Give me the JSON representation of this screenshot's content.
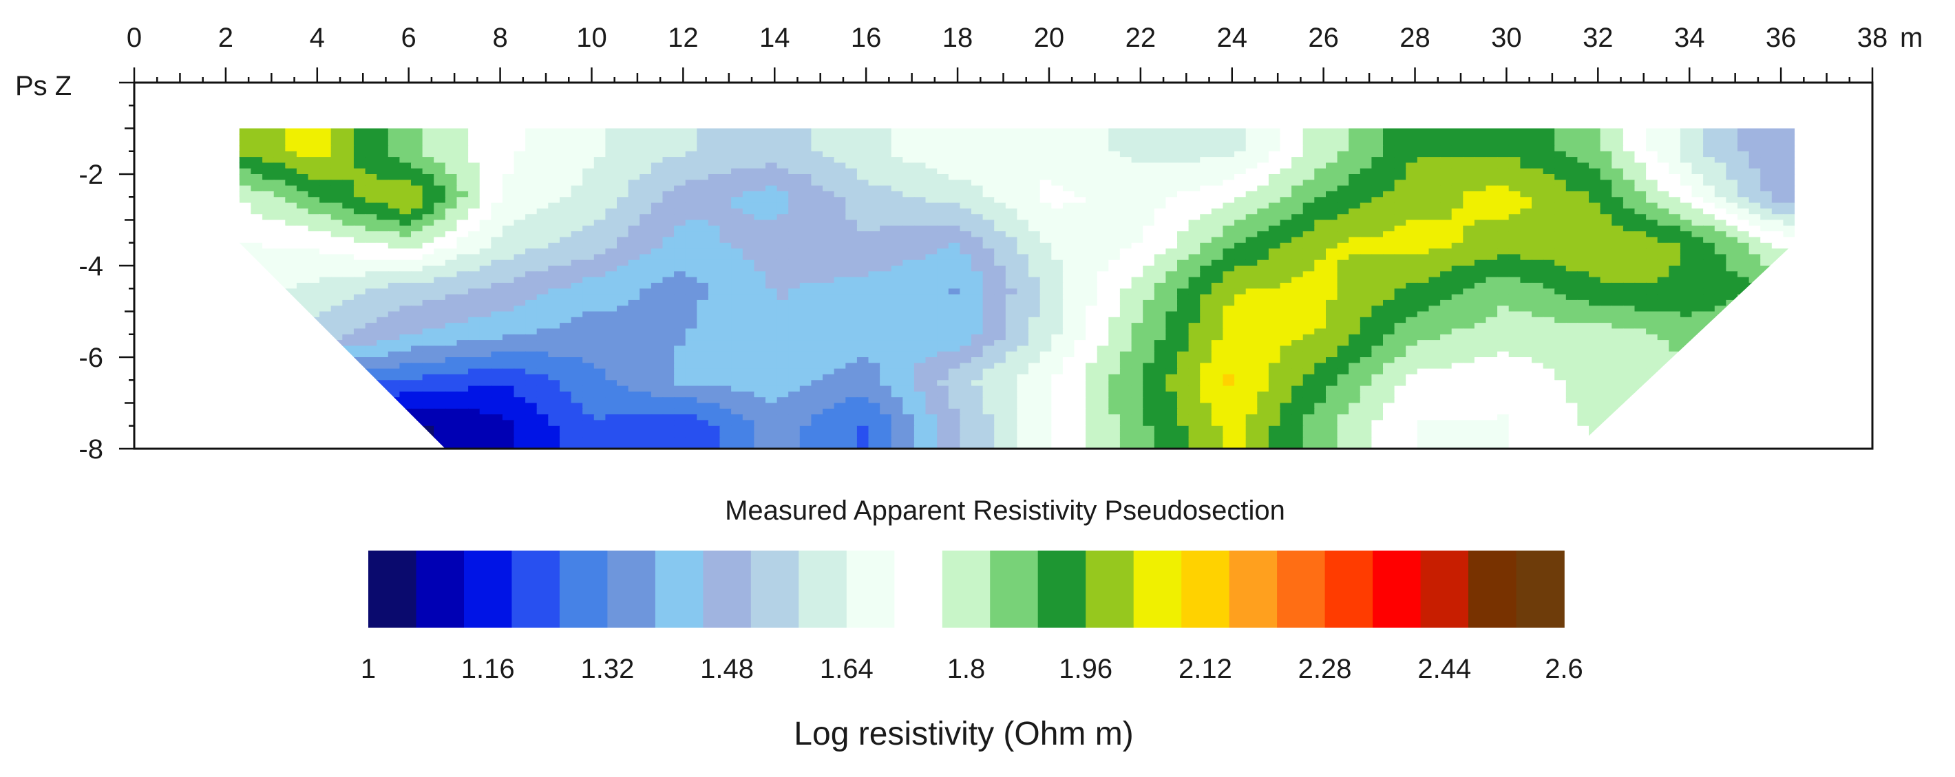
{
  "chart_data": {
    "type": "heatmap",
    "title": "Measured Apparent Resistivity Pseudosection",
    "x_unit_label": "m",
    "y_label": "Ps Z",
    "x_ticks": [
      0,
      2,
      4,
      6,
      8,
      10,
      12,
      14,
      16,
      18,
      20,
      22,
      24,
      26,
      28,
      30,
      32,
      34,
      36,
      38
    ],
    "y_ticks": [
      -2,
      -4,
      -6,
      -8
    ],
    "xlim": [
      0,
      38
    ],
    "ylim": [
      -8,
      0
    ],
    "data_extent": {
      "top_depth": -1,
      "bottom_depth": -8,
      "top_x_range": [
        2.3,
        36.3
      ],
      "bottom_x_range": [
        6.8,
        31.5
      ]
    },
    "colorbar": {
      "label": "Log resistivity (Ohm m)",
      "ticks": [
        "1",
        "1.16",
        "1.32",
        "1.48",
        "1.64",
        "1.8",
        "1.96",
        "2.12",
        "2.28",
        "2.44",
        "2.6"
      ],
      "range": [
        1,
        2.6
      ],
      "colors": [
        "#0a0a6e",
        "#0000b4",
        "#0014e6",
        "#2850f0",
        "#4682e6",
        "#6e96dc",
        "#87c8f0",
        "#a0b4e0",
        "#b4d2e6",
        "#d2f0e6",
        "#f0fff5",
        "#ffffff",
        "#c8f5c8",
        "#78d278",
        "#1e9632",
        "#96c81e",
        "#f0f000",
        "#ffd200",
        "#ffa01e",
        "#ff6e14",
        "#ff3c00",
        "#ff0000",
        "#c81e00",
        "#783200",
        "#6e3c0a"
      ]
    },
    "z_grid": {
      "x": [
        2,
        4,
        6,
        8,
        10,
        12,
        14,
        16,
        18,
        20,
        22,
        24,
        26,
        28,
        30,
        32,
        34,
        36
      ],
      "y": [
        -1.5,
        -2.5,
        -3.5,
        -4.5,
        -5.5,
        -6.5,
        -7.5
      ],
      "z": [
        [
          1.96,
          2.05,
          1.85,
          1.72,
          1.65,
          1.58,
          1.55,
          1.62,
          1.7,
          1.68,
          1.62,
          1.62,
          1.8,
          1.95,
          1.95,
          1.85,
          1.6,
          1.45
        ],
        [
          1.75,
          1.9,
          2.04,
          1.7,
          1.62,
          1.48,
          1.42,
          1.55,
          1.6,
          1.72,
          1.68,
          1.75,
          1.9,
          2.0,
          2.05,
          1.95,
          1.72,
          1.48
        ],
        [
          1.7,
          1.72,
          1.8,
          1.62,
          1.55,
          1.42,
          1.48,
          1.5,
          1.45,
          1.65,
          1.7,
          1.88,
          2.02,
          2.05,
          2.0,
          2.02,
          1.95,
          1.75
        ],
        [
          1.68,
          1.62,
          1.55,
          1.5,
          1.42,
          1.36,
          1.45,
          1.43,
          1.38,
          1.6,
          1.8,
          2.02,
          2.04,
          1.95,
          1.85,
          1.95,
          1.96,
          1.88
        ],
        [
          1.6,
          1.55,
          1.45,
          1.4,
          1.35,
          1.38,
          1.45,
          1.42,
          1.4,
          1.62,
          1.85,
          2.05,
          2.02,
          1.85,
          1.8,
          1.8,
          1.85,
          1.8
        ],
        [
          1.45,
          1.3,
          1.25,
          1.2,
          1.3,
          1.4,
          1.42,
          1.35,
          1.55,
          1.7,
          1.9,
          2.1,
          1.92,
          1.75,
          1.72,
          1.8,
          1.82,
          1.75
        ],
        [
          1.2,
          1.1,
          1.05,
          1.1,
          1.25,
          1.2,
          1.35,
          1.25,
          1.5,
          1.7,
          1.88,
          2.05,
          1.85,
          1.7,
          1.7,
          1.78,
          1.8,
          1.72
        ]
      ]
    }
  }
}
